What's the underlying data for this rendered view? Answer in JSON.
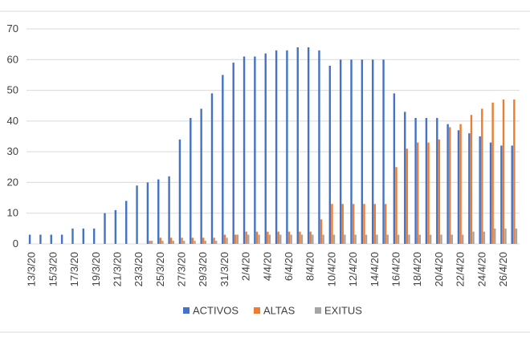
{
  "chart_data": {
    "type": "bar",
    "categories": [
      "13/3/20",
      "14/3/20",
      "15/3/20",
      "16/3/20",
      "17/3/20",
      "18/3/20",
      "19/3/20",
      "20/3/20",
      "21/3/20",
      "22/3/20",
      "23/3/20",
      "24/3/20",
      "25/3/20",
      "26/3/20",
      "27/3/20",
      "28/3/20",
      "29/3/20",
      "30/3/20",
      "31/3/20",
      "1/4/20",
      "2/4/20",
      "3/4/20",
      "4/4/20",
      "5/4/20",
      "6/4/20",
      "7/4/20",
      "8/4/20",
      "9/4/20",
      "10/4/20",
      "11/4/20",
      "12/4/20",
      "13/4/20",
      "14/4/20",
      "15/4/20",
      "16/4/20",
      "17/4/20",
      "18/4/20",
      "19/4/20",
      "20/4/20",
      "21/4/20",
      "22/4/20",
      "23/4/20",
      "24/4/20",
      "25/4/20",
      "26/4/20",
      "27/4/20"
    ],
    "tick_labels": [
      "13/3/20",
      "15/3/20",
      "17/3/20",
      "19/3/20",
      "21/3/20",
      "23/3/20",
      "25/3/20",
      "27/3/20",
      "29/3/20",
      "31/3/20",
      "2/4/20",
      "4/4/20",
      "6/4/20",
      "8/4/20",
      "10/4/20",
      "12/4/20",
      "14/4/20",
      "16/4/20",
      "18/4/20",
      "20/4/20",
      "22/4/20",
      "24/4/20",
      "26/4/20"
    ],
    "series": [
      {
        "name": "ACTIVOS",
        "color": "#4472C4",
        "values": [
          3,
          3,
          3,
          3,
          5,
          5,
          5,
          10,
          11,
          14,
          19,
          20,
          21,
          22,
          34,
          41,
          44,
          49,
          55,
          59,
          61,
          61,
          62,
          63,
          63,
          64,
          64,
          63,
          58,
          60,
          60,
          60,
          60,
          60,
          49,
          43,
          41,
          41,
          41,
          39,
          37,
          36,
          35,
          33,
          32,
          32
        ]
      },
      {
        "name": "ALTAS",
        "color": "#ED7D31",
        "values": [
          0,
          0,
          0,
          0,
          0,
          0,
          0,
          0,
          0,
          0,
          0,
          1,
          2,
          2,
          2,
          2,
          2,
          2,
          3,
          3,
          4,
          4,
          4,
          4,
          4,
          4,
          4,
          8,
          13,
          13,
          13,
          13,
          13,
          13,
          25,
          31,
          33,
          33,
          34,
          38,
          39,
          42,
          44,
          46,
          47,
          47
        ]
      },
      {
        "name": "EXITUS",
        "color": "#A5A5A5",
        "values": [
          0,
          0,
          0,
          0,
          0,
          0,
          0,
          0,
          0,
          0,
          0,
          1,
          1,
          1,
          1,
          1,
          1,
          1,
          2,
          3,
          3,
          3,
          3,
          3,
          3,
          3,
          3,
          3,
          3,
          3,
          3,
          3,
          3,
          3,
          3,
          3,
          3,
          3,
          3,
          3,
          3,
          4,
          4,
          5,
          5,
          5
        ]
      }
    ],
    "yticks": [
      "0",
      "10",
      "20",
      "30",
      "40",
      "50",
      "60",
      "70"
    ],
    "ylim": [
      0,
      70
    ],
    "grid": true,
    "legend_position": "bottom"
  }
}
